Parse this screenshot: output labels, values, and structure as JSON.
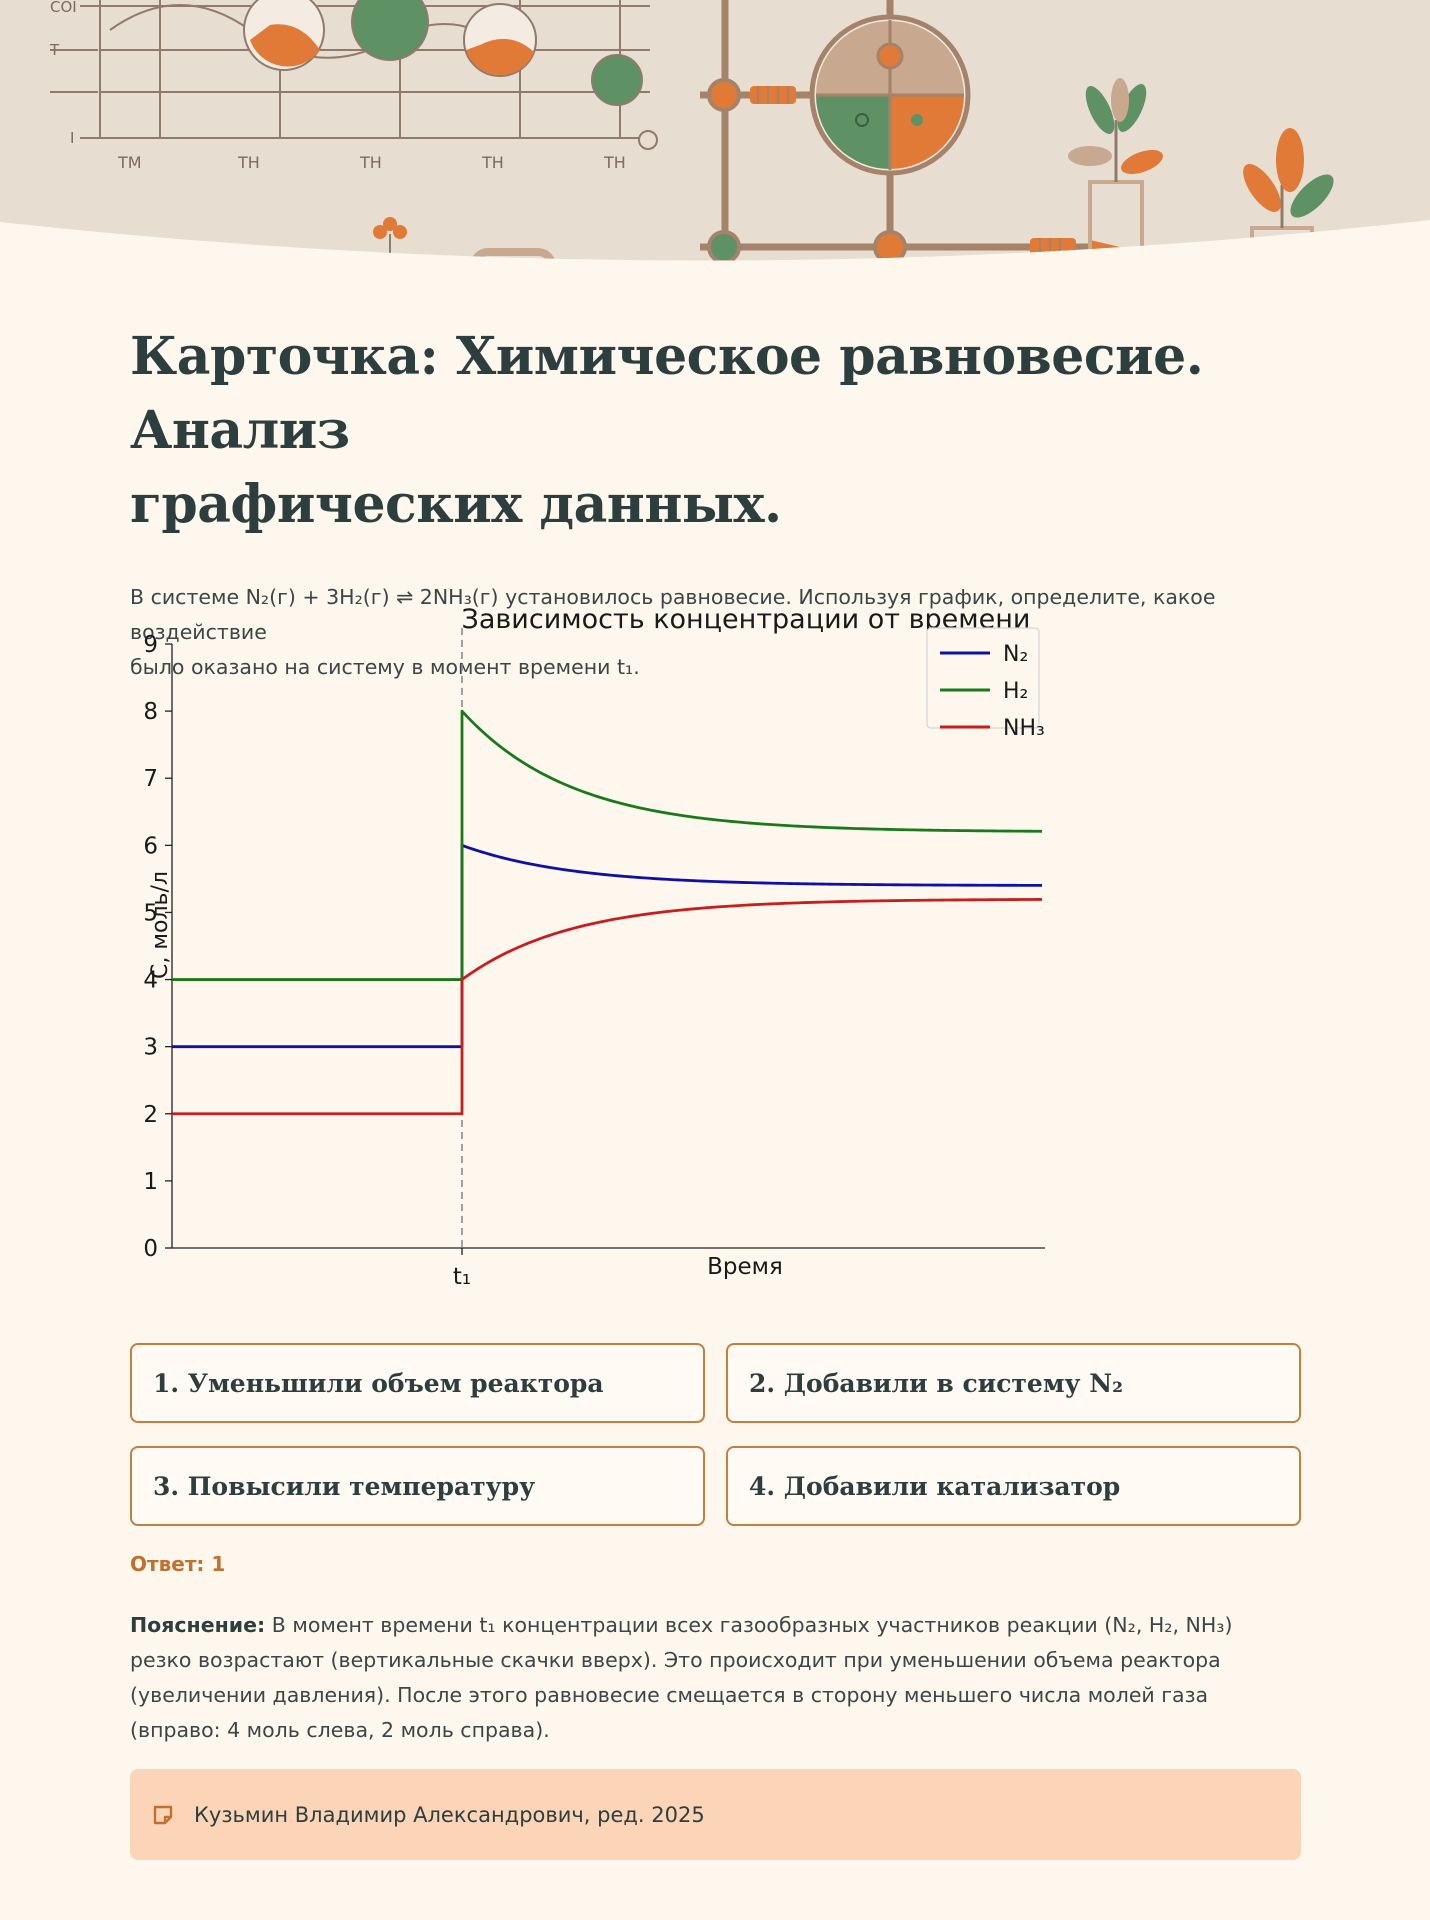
{
  "banner": {
    "chart_labels": [
      "TM",
      "TH",
      "TH",
      "TH",
      "TH"
    ],
    "axis_labels": [
      "COI",
      "T",
      "I"
    ],
    "colors": {
      "orange": "#e07a36",
      "green": "#5e9163",
      "tan": "#c9a890",
      "line": "#a5826a",
      "bg": "#e8ddd0"
    }
  },
  "card": {
    "title_line1": "Карточка: Химическое равновесие. Анализ",
    "title_line2": "графических данных.",
    "intro_line1": "В системе N₂(г) + 3H₂(г) ⇌ 2NH₃(г) установилось равновесие. Используя график, определите, какое воздействие",
    "intro_line2": "было оказано на систему в момент времени t₁."
  },
  "chart_data": {
    "type": "line",
    "title": "Зависимость концентрации от времени",
    "xlabel": "Время",
    "ylabel": "C, моль/л",
    "ylim": [
      0,
      9
    ],
    "yticks": [
      "0",
      "1",
      "2",
      "3",
      "4",
      "5",
      "6",
      "7",
      "8",
      "9"
    ],
    "xtick_label": "t₁",
    "event_marker": "t₁",
    "legend_position": "top-right",
    "series": [
      {
        "name": "N₂",
        "color": "#1010a8",
        "before": 3,
        "jump_to": 6,
        "equilibrium": 5.4
      },
      {
        "name": "H₂",
        "color": "#1a7a1a",
        "before": 4,
        "jump_to": 8,
        "equilibrium": 6.2
      },
      {
        "name": "NH₃",
        "color": "#c81e1e",
        "before": 2,
        "jump_to": 4,
        "equilibrium": 5.2
      }
    ]
  },
  "options": [
    "1. Уменьшили объем реактора",
    "2. Добавили в систему N₂",
    "3. Повысили температуру",
    "4. Добавили катализатор"
  ],
  "answer": "Ответ: 1",
  "explanation": {
    "label": "Пояснение:",
    "text": " В момент времени t₁ концентрации всех газообразных участников реакции (N₂, H₂, NH₃) резко возрастают (вертикальные скачки вверх). Это происходит при уменьшении объема реактора (увеличении давления). После этого равновесие смещается в сторону меньшего числа молей газа (вправо: 4 моль слева, 2 моль справа)."
  },
  "footer": {
    "icon": "note-icon",
    "text": "Кузьмин Владимир Александрович, ред. 2025"
  }
}
